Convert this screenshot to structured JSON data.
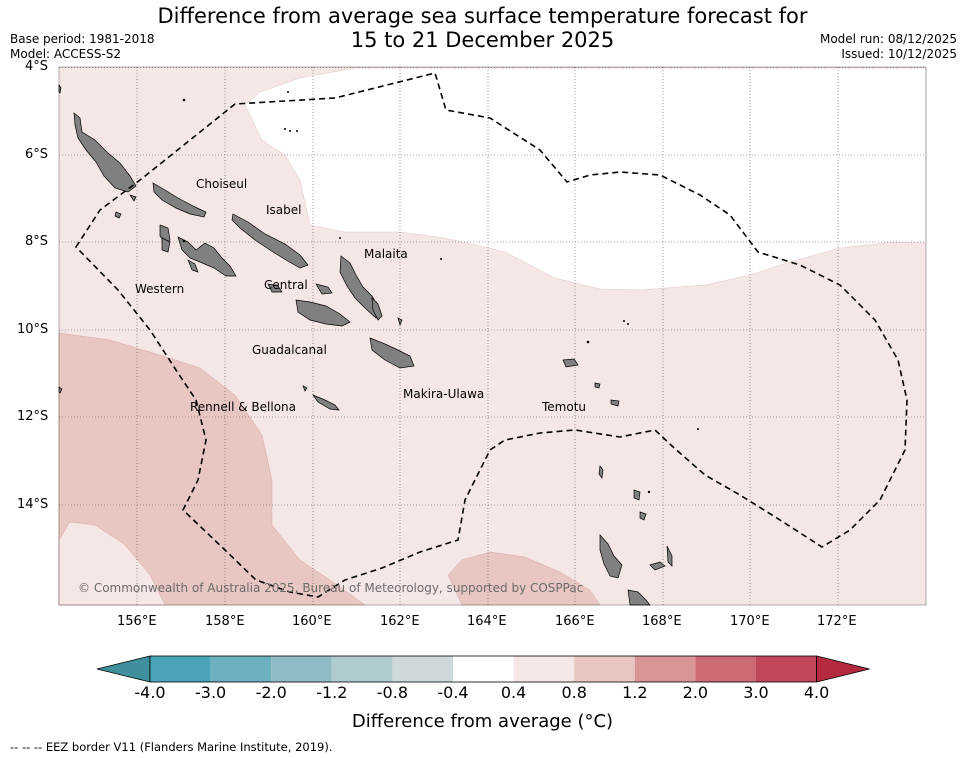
{
  "header": {
    "title_line1": "Difference from average sea surface temperature forecast for",
    "title_line2": "15 to 21 December 2025",
    "base_period": "Base period: 1981-2018",
    "model": "Model: ACCESS-S2",
    "model_run": "Model run: 08/12/2025",
    "issued": "Issued: 10/12/2025"
  },
  "axes": {
    "latitudes": [
      "4°S",
      "6°S",
      "8°S",
      "10°S",
      "12°S",
      "14°S"
    ],
    "longitudes": [
      "156°E",
      "158°E",
      "160°E",
      "162°E",
      "164°E",
      "166°E",
      "168°E",
      "170°E",
      "172°E"
    ]
  },
  "regions": {
    "choiseul": "Choiseul",
    "isabel": "Isabel",
    "malaita": "Malaita",
    "western": "Western",
    "central": "Central",
    "guadalcanal": "Guadalcanal",
    "makira": "Makira-Ulawa",
    "rennell": "Rennell & Bellona",
    "temotu": "Temotu"
  },
  "copyright": "© Commonwealth of Australia 2025, Bureau of Meteorology, supported by COSPPac",
  "colorbar": {
    "ticks": [
      "-4.0",
      "-3.0",
      "-2.0",
      "-1.2",
      "-0.8",
      "-0.4",
      "0.4",
      "0.8",
      "1.2",
      "2.0",
      "3.0",
      "4.0"
    ],
    "title": "Difference from average (°C)",
    "colors": [
      "#3f8f9c",
      "#4ba3b7",
      "#6db0c0",
      "#8fbcc6",
      "#aecbd0",
      "#ced9dc",
      "#ffffff",
      "#f5e7e6",
      "#e8c6c2",
      "#d99497",
      "#cc6b74",
      "#c0485a",
      "#b5293f"
    ]
  },
  "legend": {
    "eez_note": "--  --  -- EEZ border V11 (Flanders Marine Institute, 2019)."
  }
}
